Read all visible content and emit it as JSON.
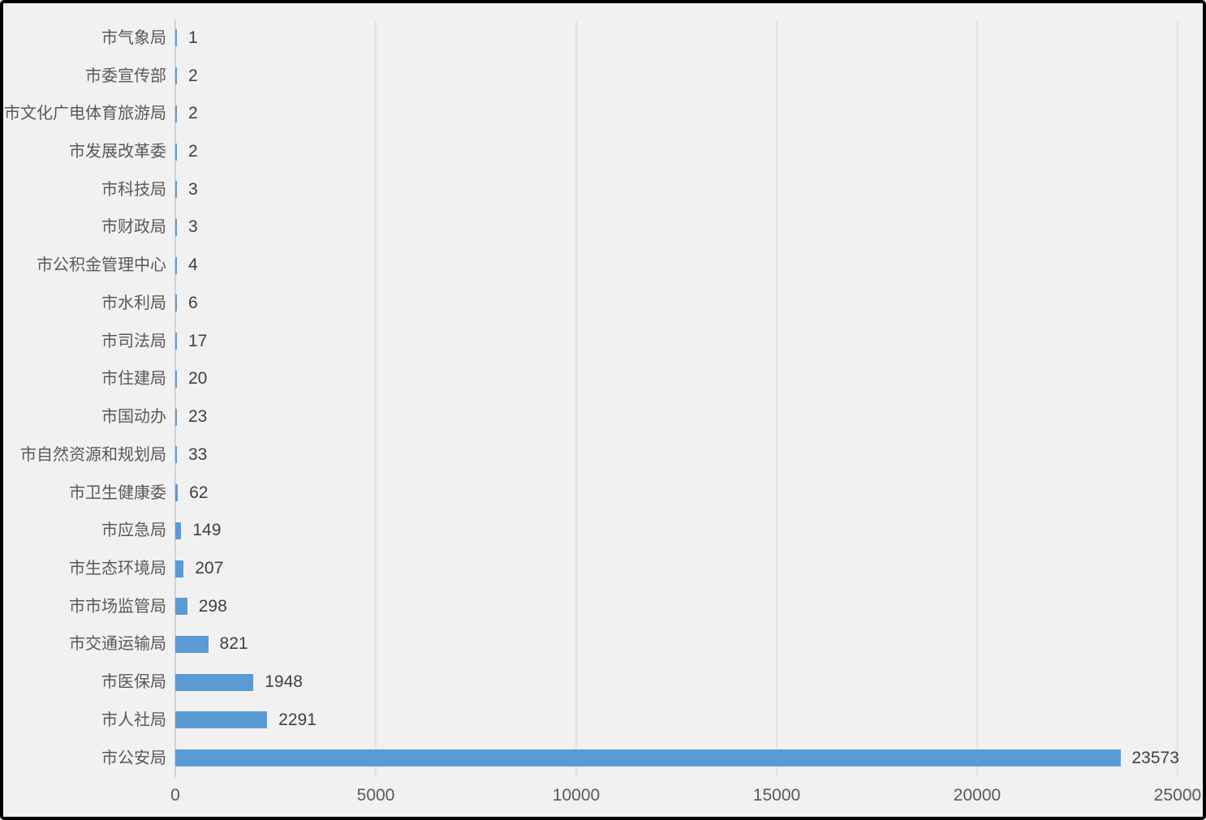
{
  "chart_data": {
    "type": "bar",
    "orientation": "horizontal",
    "title": "",
    "xlabel": "",
    "ylabel": "",
    "categories": [
      "市气象局",
      "市委宣传部",
      "市文化广电体育旅游局",
      "市发展改革委",
      "市科技局",
      "市财政局",
      "市公积金管理中心",
      "市水利局",
      "市司法局",
      "市住建局",
      "市国动办",
      "市自然资源和规划局",
      "市卫生健康委",
      "市应急局",
      "市生态环境局",
      "市市场监管局",
      "市交通运输局",
      "市医保局",
      "市人社局",
      "市公安局"
    ],
    "values": [
      1,
      2,
      2,
      2,
      3,
      3,
      4,
      6,
      17,
      20,
      23,
      33,
      62,
      149,
      207,
      298,
      821,
      1948,
      2291,
      23573
    ],
    "data_labels": [
      "1",
      "2",
      "2",
      "2",
      "3",
      "3",
      "4",
      "6",
      "17",
      "20",
      "23",
      "33",
      "62",
      "149",
      "207",
      "298",
      "821",
      "1948",
      "2291",
      "23573"
    ],
    "x_ticks": [
      0,
      5000,
      10000,
      15000,
      20000,
      25000
    ],
    "x_tick_labels": [
      "0",
      "5000",
      "10000",
      "15000",
      "20000",
      "25000"
    ],
    "xlim": [
      0,
      25000
    ],
    "grid": true,
    "legend": "none",
    "colors": {
      "bar": "#5B9BD5",
      "background": "#F1F1F1",
      "gridline": "#E3E3E5",
      "axis_line": "#D2D2D4",
      "category_label": "#595959",
      "value_label": "#404040",
      "tick_label": "#595959",
      "frame_border": "#000000"
    }
  }
}
